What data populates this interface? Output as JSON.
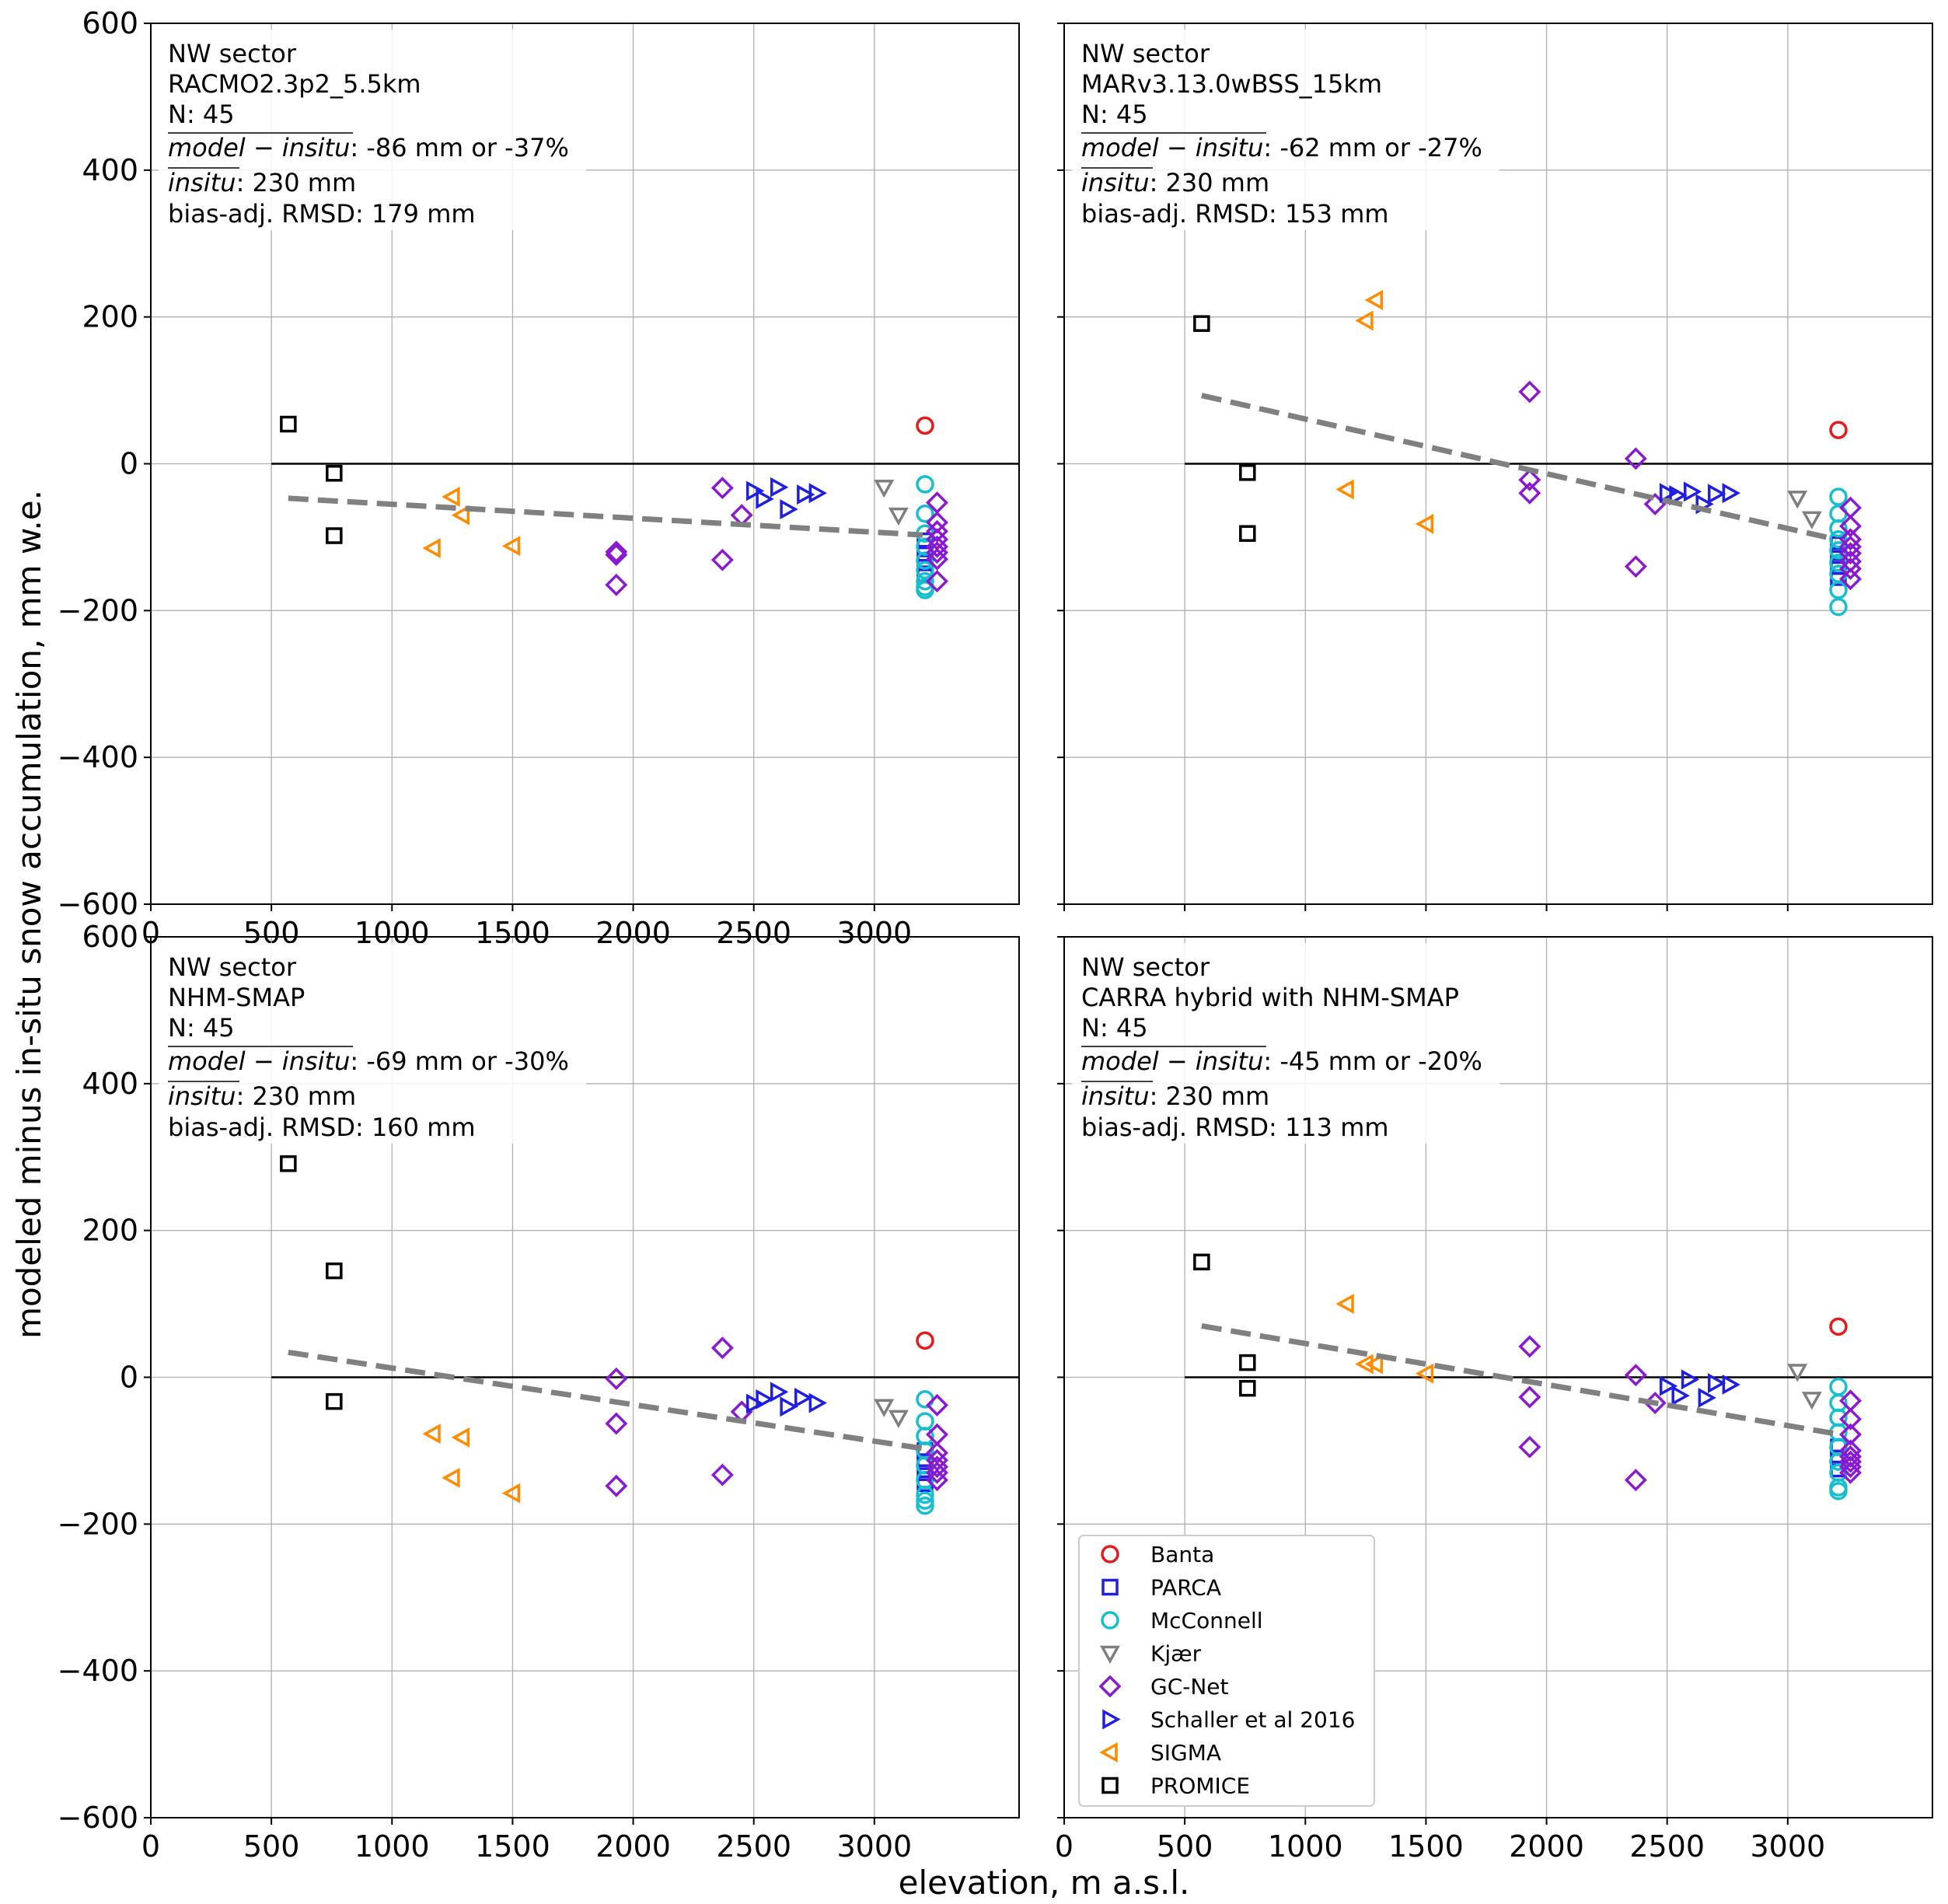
{
  "figure": {
    "ylabel": "modeled minus in-situ snow accumulation, mm w.e.",
    "xlabel": "elevation, m a.s.l."
  },
  "legend": [
    {
      "name": "Banta",
      "color": "#e41a1c",
      "marker": "circle"
    },
    {
      "name": "PARCA",
      "color": "#1f1fe0",
      "marker": "square"
    },
    {
      "name": "McConnell",
      "color": "#17becf",
      "marker": "circle"
    },
    {
      "name": "Kjær",
      "color": "#7f7f7f",
      "marker": "triangle-down"
    },
    {
      "name": "GC-Net",
      "color": "#8a1ad0",
      "marker": "diamond"
    },
    {
      "name": "Schaller et al 2016",
      "color": "#1f1fe0",
      "marker": "triangle-right"
    },
    {
      "name": "SIGMA",
      "color": "#ff8c00",
      "marker": "triangle-left"
    },
    {
      "name": "PROMICE",
      "color": "#000000",
      "marker": "square"
    }
  ],
  "chart_data": [
    {
      "type": "scatter",
      "xlim": [
        0,
        3600
      ],
      "ylim": [
        -600,
        600
      ],
      "xticks": [
        0,
        500,
        1000,
        1500,
        2000,
        2500,
        3000
      ],
      "yticks": [
        -600,
        -400,
        -200,
        0,
        200,
        400,
        600
      ],
      "xtick_labels": [
        "0",
        "500",
        "1000",
        "1500",
        "2000",
        "2500",
        "3000"
      ],
      "ytick_labels": [
        "−600",
        "−400",
        "−200",
        "0",
        "200",
        "400",
        "600"
      ],
      "grid": true,
      "annotation": {
        "sector": "NW sector",
        "model": "RACMO2.3p2_5.5km",
        "n": "N: 45",
        "bias_label": "model − insitu",
        "bias_value": ": -86 mm or -37%",
        "insitu_label": "insitu",
        "insitu_value": ": 230 mm",
        "rmsd": "bias-adj. RMSD: 179 mm"
      },
      "trend": [
        [
          570,
          -47
        ],
        [
          3200,
          -97
        ]
      ],
      "series": [
        {
          "name": "Banta",
          "points": [
            [
              3210,
              52
            ]
          ]
        },
        {
          "name": "PARCA",
          "points": [
            [
              3210,
              -105
            ],
            [
              3210,
              -122
            ],
            [
              3210,
              -135
            ],
            [
              3210,
              -150
            ]
          ]
        },
        {
          "name": "McConnell",
          "points": [
            [
              3210,
              -28
            ],
            [
              3210,
              -68
            ],
            [
              3210,
              -95
            ],
            [
              3210,
              -113
            ],
            [
              3210,
              -132
            ],
            [
              3210,
              -145
            ],
            [
              3210,
              -160
            ],
            [
              3210,
              -168
            ],
            [
              3210,
              -172
            ]
          ]
        },
        {
          "name": "Kjær",
          "points": [
            [
              3040,
              -32
            ],
            [
              3100,
              -70
            ]
          ]
        },
        {
          "name": "GC-Net",
          "points": [
            [
              1930,
              -120
            ],
            [
              1930,
              -124
            ],
            [
              1930,
              -165
            ],
            [
              2370,
              -33
            ],
            [
              2370,
              -131
            ],
            [
              2450,
              -70
            ],
            [
              3260,
              -53
            ],
            [
              3260,
              -80
            ],
            [
              3260,
              -92
            ],
            [
              3260,
              -103
            ],
            [
              3260,
              -113
            ],
            [
              3260,
              -121
            ],
            [
              3260,
              -130
            ],
            [
              3260,
              -160
            ]
          ]
        },
        {
          "name": "Schaller et al 2016",
          "points": [
            [
              2500,
              -37
            ],
            [
              2540,
              -48
            ],
            [
              2600,
              -32
            ],
            [
              2640,
              -62
            ],
            [
              2710,
              -42
            ],
            [
              2760,
              -40
            ]
          ]
        },
        {
          "name": "SIGMA",
          "points": [
            [
              1170,
              -115
            ],
            [
              1250,
              -45
            ],
            [
              1290,
              -70
            ],
            [
              1500,
              -112
            ]
          ]
        },
        {
          "name": "PROMICE",
          "points": [
            [
              570,
              54
            ],
            [
              760,
              -13
            ],
            [
              760,
              -98
            ]
          ]
        }
      ]
    },
    {
      "type": "scatter",
      "xlim": [
        0,
        3600
      ],
      "ylim": [
        -600,
        600
      ],
      "xticks": [
        0,
        500,
        1000,
        1500,
        2000,
        2500,
        3000
      ],
      "yticks": [
        -600,
        -400,
        -200,
        0,
        200,
        400,
        600
      ],
      "xtick_labels": [],
      "ytick_labels": [],
      "grid": true,
      "annotation": {
        "sector": "NW sector",
        "model": "MARv3.13.0wBSS_15km",
        "n": "N: 45",
        "bias_label": "model − insitu",
        "bias_value": ": -62 mm or -27%",
        "insitu_label": "insitu",
        "insitu_value": ": 230 mm",
        "rmsd": "bias-adj. RMSD: 153 mm"
      },
      "trend": [
        [
          570,
          93
        ],
        [
          3200,
          -103
        ]
      ],
      "series": [
        {
          "name": "Banta",
          "points": [
            [
              3210,
              46
            ]
          ]
        },
        {
          "name": "PARCA",
          "points": [
            [
              3210,
              -110
            ],
            [
              3210,
              -125
            ],
            [
              3210,
              -140
            ],
            [
              3210,
              -155
            ]
          ]
        },
        {
          "name": "McConnell",
          "points": [
            [
              3210,
              -45
            ],
            [
              3210,
              -68
            ],
            [
              3210,
              -88
            ],
            [
              3210,
              -103
            ],
            [
              3210,
              -118
            ],
            [
              3210,
              -135
            ],
            [
              3210,
              -150
            ],
            [
              3210,
              -172
            ],
            [
              3210,
              -195
            ]
          ]
        },
        {
          "name": "Kjær",
          "points": [
            [
              3040,
              -47
            ],
            [
              3100,
              -75
            ]
          ]
        },
        {
          "name": "GC-Net",
          "points": [
            [
              1930,
              98
            ],
            [
              1930,
              -22
            ],
            [
              1930,
              -40
            ],
            [
              2370,
              7
            ],
            [
              2370,
              -140
            ],
            [
              2450,
              -55
            ],
            [
              3260,
              -60
            ],
            [
              3260,
              -85
            ],
            [
              3260,
              -103
            ],
            [
              3260,
              -113
            ],
            [
              3260,
              -122
            ],
            [
              3260,
              -133
            ],
            [
              3260,
              -143
            ],
            [
              3260,
              -157
            ]
          ]
        },
        {
          "name": "Schaller et al 2016",
          "points": [
            [
              2500,
              -40
            ],
            [
              2540,
              -43
            ],
            [
              2600,
              -38
            ],
            [
              2650,
              -55
            ],
            [
              2700,
              -41
            ],
            [
              2760,
              -40
            ]
          ]
        },
        {
          "name": "SIGMA",
          "points": [
            [
              1170,
              -35
            ],
            [
              1250,
              195
            ],
            [
              1290,
              223
            ],
            [
              1500,
              -82
            ]
          ]
        },
        {
          "name": "PROMICE",
          "points": [
            [
              570,
              191
            ],
            [
              760,
              -12
            ],
            [
              760,
              -95
            ]
          ]
        }
      ]
    },
    {
      "type": "scatter",
      "xlim": [
        0,
        3600
      ],
      "ylim": [
        -600,
        600
      ],
      "xticks": [
        0,
        500,
        1000,
        1500,
        2000,
        2500,
        3000
      ],
      "yticks": [
        -600,
        -400,
        -200,
        0,
        200,
        400,
        600
      ],
      "xtick_labels": [
        "0",
        "500",
        "1000",
        "1500",
        "2000",
        "2500",
        "3000"
      ],
      "ytick_labels": [
        "−600",
        "−400",
        "−200",
        "0",
        "200",
        "400",
        "600"
      ],
      "grid": true,
      "annotation": {
        "sector": "NW sector",
        "model": "NHM-SMAP",
        "n": "N: 45",
        "bias_label": "model − insitu",
        "bias_value": ": -69 mm or -30%",
        "insitu_label": "insitu",
        "insitu_value": ": 230 mm",
        "rmsd": "bias-adj. RMSD: 160 mm"
      },
      "trend": [
        [
          570,
          34
        ],
        [
          3200,
          -97
        ]
      ],
      "series": [
        {
          "name": "Banta",
          "points": [
            [
              3210,
              50
            ]
          ]
        },
        {
          "name": "PARCA",
          "points": [
            [
              3210,
              -100
            ],
            [
              3210,
              -115
            ],
            [
              3210,
              -130
            ],
            [
              3210,
              -145
            ]
          ]
        },
        {
          "name": "McConnell",
          "points": [
            [
              3210,
              -30
            ],
            [
              3210,
              -60
            ],
            [
              3210,
              -80
            ],
            [
              3210,
              -100
            ],
            [
              3210,
              -120
            ],
            [
              3210,
              -140
            ],
            [
              3210,
              -160
            ],
            [
              3210,
              -168
            ],
            [
              3210,
              -175
            ]
          ]
        },
        {
          "name": "Kjær",
          "points": [
            [
              3040,
              -40
            ],
            [
              3100,
              -55
            ]
          ]
        },
        {
          "name": "GC-Net",
          "points": [
            [
              1930,
              -2
            ],
            [
              1930,
              -63
            ],
            [
              1930,
              -148
            ],
            [
              2370,
              40
            ],
            [
              2370,
              -133
            ],
            [
              2450,
              -47
            ],
            [
              3260,
              -38
            ],
            [
              3260,
              -78
            ],
            [
              3260,
              -103
            ],
            [
              3260,
              -113
            ],
            [
              3260,
              -122
            ],
            [
              3260,
              -130
            ],
            [
              3260,
              -140
            ]
          ]
        },
        {
          "name": "Schaller et al 2016",
          "points": [
            [
              2500,
              -36
            ],
            [
              2540,
              -30
            ],
            [
              2600,
              -20
            ],
            [
              2640,
              -40
            ],
            [
              2700,
              -28
            ],
            [
              2760,
              -35
            ]
          ]
        },
        {
          "name": "SIGMA",
          "points": [
            [
              1170,
              -77
            ],
            [
              1250,
              -137
            ],
            [
              1290,
              -82
            ],
            [
              1500,
              -158
            ]
          ]
        },
        {
          "name": "PROMICE",
          "points": [
            [
              570,
              291
            ],
            [
              760,
              145
            ],
            [
              760,
              -33
            ]
          ]
        }
      ]
    },
    {
      "type": "scatter",
      "xlim": [
        0,
        3600
      ],
      "ylim": [
        -600,
        600
      ],
      "xticks": [
        0,
        500,
        1000,
        1500,
        2000,
        2500,
        3000
      ],
      "yticks": [
        -600,
        -400,
        -200,
        0,
        200,
        400,
        600
      ],
      "xtick_labels": [
        "0",
        "500",
        "1000",
        "1500",
        "2000",
        "2500",
        "3000"
      ],
      "ytick_labels": [],
      "grid": true,
      "annotation": {
        "sector": "NW sector",
        "model": "CARRA hybrid with NHM-SMAP",
        "n": "N: 45",
        "bias_label": "model − insitu",
        "bias_value": ": -45 mm or -20%",
        "insitu_label": "insitu",
        "insitu_value": ": 230 mm",
        "rmsd": "bias-adj. RMSD: 113 mm"
      },
      "trend": [
        [
          570,
          70
        ],
        [
          3200,
          -77
        ]
      ],
      "series": [
        {
          "name": "Banta",
          "points": [
            [
              3210,
              69
            ]
          ]
        },
        {
          "name": "PARCA",
          "points": [
            [
              3210,
              -95
            ],
            [
              3210,
              -110
            ],
            [
              3210,
              -125
            ]
          ]
        },
        {
          "name": "McConnell",
          "points": [
            [
              3210,
              -13
            ],
            [
              3210,
              -35
            ],
            [
              3210,
              -55
            ],
            [
              3210,
              -75
            ],
            [
              3210,
              -95
            ],
            [
              3210,
              -115
            ],
            [
              3210,
              -130
            ],
            [
              3210,
              -150
            ],
            [
              3210,
              -155
            ]
          ]
        },
        {
          "name": "Kjær",
          "points": [
            [
              3040,
              8
            ],
            [
              3100,
              -30
            ]
          ]
        },
        {
          "name": "GC-Net",
          "points": [
            [
              1930,
              42
            ],
            [
              1930,
              -27
            ],
            [
              1930,
              -95
            ],
            [
              2370,
              3
            ],
            [
              2370,
              -140
            ],
            [
              2450,
              -35
            ],
            [
              3260,
              -32
            ],
            [
              3260,
              -57
            ],
            [
              3260,
              -78
            ],
            [
              3260,
              -100
            ],
            [
              3260,
              -108
            ],
            [
              3260,
              -115
            ],
            [
              3260,
              -122
            ],
            [
              3260,
              -130
            ]
          ]
        },
        {
          "name": "Schaller et al 2016",
          "points": [
            [
              2500,
              -12
            ],
            [
              2550,
              -25
            ],
            [
              2590,
              -3
            ],
            [
              2660,
              -28
            ],
            [
              2700,
              -8
            ],
            [
              2760,
              -10
            ]
          ]
        },
        {
          "name": "SIGMA",
          "points": [
            [
              1170,
              100
            ],
            [
              1250,
              18
            ],
            [
              1290,
              18
            ],
            [
              1500,
              5
            ]
          ]
        },
        {
          "name": "PROMICE",
          "points": [
            [
              570,
              157
            ],
            [
              760,
              20
            ],
            [
              760,
              -15
            ]
          ]
        }
      ]
    }
  ]
}
